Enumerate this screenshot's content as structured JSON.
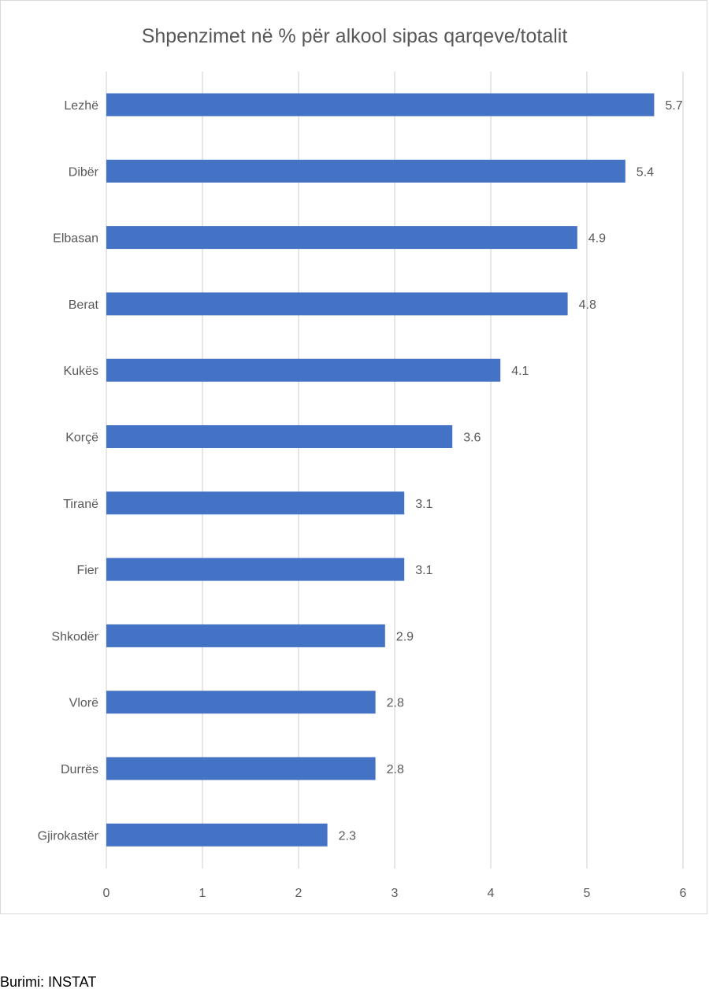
{
  "chart_data": {
    "type": "bar",
    "orientation": "horizontal",
    "title": "Shpenzimet në % për alkool sipas qarqeve/totalit",
    "categories": [
      "Lezhë",
      "Dibër",
      "Elbasan",
      "Berat",
      "Kukës",
      "Korçë",
      "Tiranë",
      "Fier",
      "Shkodër",
      "Vlorë",
      "Durrës",
      "Gjirokastër"
    ],
    "values": [
      5.7,
      5.4,
      4.9,
      4.8,
      4.1,
      3.6,
      3.1,
      3.1,
      2.9,
      2.8,
      2.8,
      2.3
    ],
    "value_labels": [
      "5.7",
      "5.4",
      "4.9",
      "4.8",
      "4.1",
      "3.6",
      "3.1",
      "3.1",
      "2.9",
      "2.8",
      "2.8",
      "2.3"
    ],
    "xlim": [
      0,
      6
    ],
    "x_ticks": [
      "0",
      "1",
      "2",
      "3",
      "4",
      "5",
      "6"
    ],
    "xlabel": "",
    "ylabel": "",
    "grid": "vertical",
    "legend": "none",
    "bar_color": "#4472c4"
  },
  "source_note": "Burimi: INSTAT"
}
